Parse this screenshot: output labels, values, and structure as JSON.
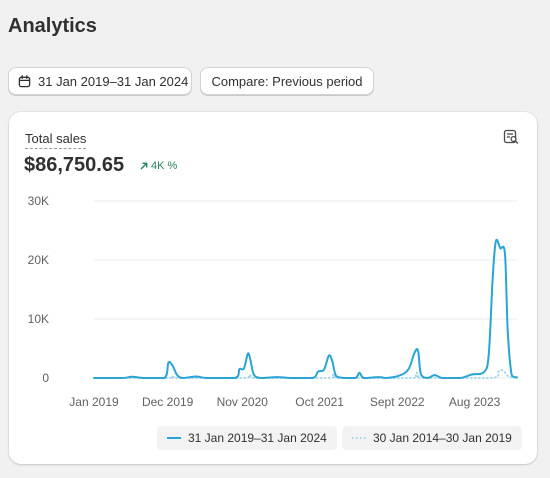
{
  "page": {
    "title": "Analytics"
  },
  "toolbar": {
    "date_range_label": "31 Jan 2019–31 Jan 2024",
    "compare_label": "Compare: Previous period"
  },
  "card": {
    "metric_label": "Total sales",
    "metric_value": "$86,750.65",
    "change_text": "4K %",
    "icons": {
      "options": "chart-options-icon",
      "change": "arrow-up-right-icon",
      "date": "calendar-icon"
    }
  },
  "colors": {
    "primary_series": "#2aa3d5",
    "comparison_series": "#9fd3ea",
    "positive_change": "#29845a"
  },
  "legend": [
    {
      "label": "31 Jan 2019–31 Jan 2024"
    },
    {
      "label": "30 Jan 2014–30 Jan 2019"
    }
  ],
  "chart_data": {
    "type": "line",
    "ylim": [
      0,
      30000
    ],
    "y_ticks": [
      {
        "value": 0,
        "label": "0"
      },
      {
        "value": 10000,
        "label": "10K"
      },
      {
        "value": 20000,
        "label": "20K"
      },
      {
        "value": 30000,
        "label": "30K"
      }
    ],
    "x_range": [
      "2019-01-31",
      "2024-01-31"
    ],
    "x_ticks": [
      {
        "date": "2019-01-31",
        "label": "Jan 2019"
      },
      {
        "date": "2019-12-15",
        "label": "Dec 2019"
      },
      {
        "date": "2020-11-01",
        "label": "Nov 2020"
      },
      {
        "date": "2021-10-01",
        "label": "Oct 2021"
      },
      {
        "date": "2022-09-01",
        "label": "Sept 2022"
      },
      {
        "date": "2023-08-01",
        "label": "Aug 2023"
      }
    ],
    "grid": true,
    "legend_position": "bottom",
    "series": [
      {
        "name": "31 Jan 2019–31 Jan 2024",
        "style": "solid",
        "points": [
          [
            "2019-01-31",
            0
          ],
          [
            "2019-06-01",
            0
          ],
          [
            "2019-07-15",
            200
          ],
          [
            "2019-09-01",
            0
          ],
          [
            "2019-12-01",
            0
          ],
          [
            "2019-12-18",
            2600
          ],
          [
            "2020-01-05",
            2100
          ],
          [
            "2020-01-25",
            500
          ],
          [
            "2020-02-20",
            0
          ],
          [
            "2020-04-15",
            250
          ],
          [
            "2020-06-01",
            0
          ],
          [
            "2020-10-01",
            0
          ],
          [
            "2020-10-20",
            1500
          ],
          [
            "2020-11-08",
            1600
          ],
          [
            "2020-11-25",
            4100
          ],
          [
            "2020-12-05",
            3300
          ],
          [
            "2020-12-22",
            500
          ],
          [
            "2021-01-25",
            0
          ],
          [
            "2021-04-01",
            150
          ],
          [
            "2021-06-01",
            0
          ],
          [
            "2021-09-01",
            0
          ],
          [
            "2021-09-25",
            1100
          ],
          [
            "2021-10-20",
            1400
          ],
          [
            "2021-11-10",
            3800
          ],
          [
            "2021-11-25",
            2800
          ],
          [
            "2021-12-12",
            300
          ],
          [
            "2022-01-20",
            0
          ],
          [
            "2022-03-05",
            0
          ],
          [
            "2022-03-22",
            900
          ],
          [
            "2022-04-10",
            0
          ],
          [
            "2022-06-15",
            150
          ],
          [
            "2022-07-15",
            0
          ],
          [
            "2022-09-10",
            400
          ],
          [
            "2022-10-20",
            1500
          ],
          [
            "2022-11-15",
            4300
          ],
          [
            "2022-11-30",
            4600
          ],
          [
            "2022-12-12",
            700
          ],
          [
            "2023-01-10",
            0
          ],
          [
            "2023-02-10",
            500
          ],
          [
            "2023-03-15",
            0
          ],
          [
            "2023-06-01",
            0
          ],
          [
            "2023-07-20",
            600
          ],
          [
            "2023-09-10",
            1000
          ],
          [
            "2023-10-01",
            3900
          ],
          [
            "2023-10-18",
            17000
          ],
          [
            "2023-11-01",
            23200
          ],
          [
            "2023-11-20",
            22000
          ],
          [
            "2023-12-10",
            21000
          ],
          [
            "2023-12-22",
            8000
          ],
          [
            "2024-01-08",
            500
          ],
          [
            "2024-01-31",
            100
          ]
        ]
      },
      {
        "name": "30 Jan 2014–30 Jan 2019",
        "style": "dotted",
        "points": [
          [
            "2019-01-31",
            0
          ],
          [
            "2019-12-10",
            0
          ],
          [
            "2020-01-05",
            300
          ],
          [
            "2020-02-01",
            0
          ],
          [
            "2020-11-10",
            0
          ],
          [
            "2020-12-05",
            500
          ],
          [
            "2020-12-30",
            0
          ],
          [
            "2021-11-10",
            0
          ],
          [
            "2021-12-01",
            700
          ],
          [
            "2021-12-25",
            0
          ],
          [
            "2022-11-01",
            0
          ],
          [
            "2022-11-25",
            900
          ],
          [
            "2022-12-20",
            0
          ],
          [
            "2023-10-10",
            0
          ],
          [
            "2023-11-10",
            1000
          ],
          [
            "2023-12-01",
            1300
          ],
          [
            "2023-12-25",
            300
          ],
          [
            "2024-01-31",
            0
          ]
        ]
      }
    ]
  }
}
